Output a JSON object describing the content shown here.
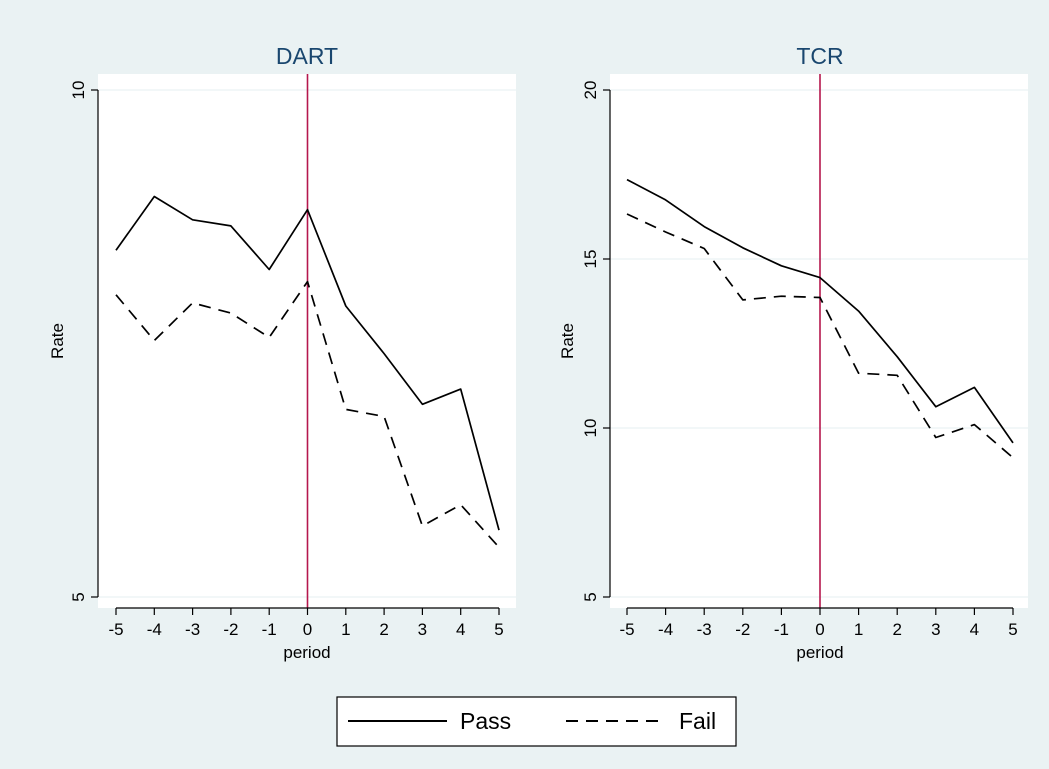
{
  "colors": {
    "background": "#eaf2f3",
    "plot_background": "#ffffff",
    "gridline": "#eaf2f3",
    "reference_line": "#b5174d",
    "title_color": "#1a476f",
    "series_color": "#000000"
  },
  "legend": {
    "placement": "bottom-center",
    "items": [
      {
        "label": "Pass",
        "style": "solid"
      },
      {
        "label": "Fail",
        "style": "dashed"
      }
    ]
  },
  "chart_data": [
    {
      "type": "line",
      "title": "DART",
      "xlabel": "period",
      "ylabel": "Rate",
      "xlim": [
        -5,
        5
      ],
      "ylim": [
        5,
        10
      ],
      "x_ticks": [
        -5,
        -4,
        -3,
        -2,
        -1,
        0,
        1,
        2,
        3,
        4,
        5
      ],
      "y_ticks": [
        5,
        10
      ],
      "grid": true,
      "reference_x": 0,
      "x": [
        -5,
        -4,
        -3,
        -2,
        -1,
        0,
        1,
        2,
        3,
        4,
        5
      ],
      "series": [
        {
          "name": "Pass",
          "style": "solid",
          "values": [
            8.42,
            8.95,
            8.72,
            8.66,
            8.23,
            8.82,
            7.87,
            7.4,
            6.9,
            7.05,
            5.66
          ]
        },
        {
          "name": "Fail",
          "style": "dashed",
          "values": [
            7.98,
            7.53,
            7.9,
            7.8,
            7.56,
            8.11,
            6.85,
            6.78,
            5.7,
            5.91,
            5.49
          ]
        }
      ]
    },
    {
      "type": "line",
      "title": "TCR",
      "xlabel": "period",
      "ylabel": "Rate",
      "xlim": [
        -5,
        5
      ],
      "ylim": [
        5,
        20
      ],
      "x_ticks": [
        -5,
        -4,
        -3,
        -2,
        -1,
        0,
        1,
        2,
        3,
        4,
        5
      ],
      "y_ticks": [
        5,
        10,
        15,
        20
      ],
      "grid": true,
      "reference_x": 0,
      "x": [
        -5,
        -4,
        -3,
        -2,
        -1,
        0,
        1,
        2,
        3,
        4,
        5
      ],
      "series": [
        {
          "name": "Pass",
          "style": "solid",
          "values": [
            17.35,
            16.75,
            15.96,
            15.33,
            14.8,
            14.45,
            13.46,
            12.11,
            10.63,
            11.2,
            9.56
          ]
        },
        {
          "name": "Fail",
          "style": "dashed",
          "values": [
            16.33,
            15.8,
            15.31,
            13.79,
            13.9,
            13.86,
            11.62,
            11.56,
            9.72,
            10.1,
            9.12
          ]
        }
      ]
    }
  ]
}
